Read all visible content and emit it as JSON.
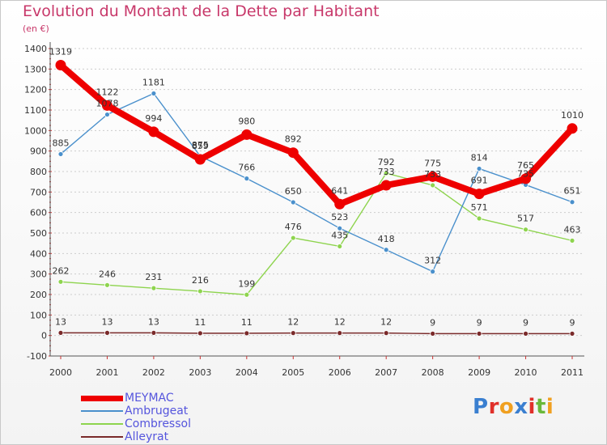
{
  "header": {
    "title": "Evolution du Montant de la Dette par Habitant",
    "subtitle": "(en €)"
  },
  "logo": {
    "text": "Proxiti"
  },
  "colors": {
    "title": "#c8386a",
    "legend_text": "#5555dd",
    "axis": "#555555",
    "grid": "#cccccc"
  },
  "chart_data": {
    "type": "line",
    "title": "Evolution du Montant de la Dette par Habitant",
    "subtitle": "(en €)",
    "xlabel": "",
    "ylabel": "",
    "x": [
      "2000",
      "2001",
      "2002",
      "2003",
      "2004",
      "2005",
      "2006",
      "2007",
      "2008",
      "2009",
      "2010",
      "2011"
    ],
    "ylim": [
      -100,
      1400
    ],
    "yticks": [
      -100,
      0,
      100,
      200,
      300,
      400,
      500,
      600,
      700,
      800,
      900,
      1000,
      1100,
      1200,
      1300,
      1400
    ],
    "grid": "horizontal dashed",
    "legend_position": "bottom-left",
    "series": [
      {
        "name": "MEYMAC",
        "color": "#ee0000",
        "values": [
          1319,
          1122,
          994,
          859,
          980,
          892,
          641,
          733,
          775,
          691,
          765,
          1010
        ],
        "data_labels": [
          "1319",
          "1122",
          "994",
          "859",
          "980",
          "892",
          "641",
          "733",
          "775",
          "691",
          "765",
          "1010"
        ]
      },
      {
        "name": "Ambrugeat",
        "color": "#4a90cc",
        "values": [
          885,
          1078,
          1181,
          875,
          766,
          650,
          523,
          418,
          312,
          814,
          735,
          651
        ],
        "data_labels": [
          "885",
          "1078",
          "1181",
          "875",
          "766",
          "650",
          "523",
          "418",
          "312",
          "814",
          "735",
          "651"
        ]
      },
      {
        "name": "Combressol",
        "color": "#8ed44e",
        "values": [
          262,
          246,
          231,
          216,
          199,
          476,
          435,
          792,
          733,
          571,
          517,
          463
        ],
        "data_labels": [
          "262",
          "246",
          "231",
          "216",
          "199",
          "476",
          "435",
          "792",
          "733",
          "571",
          "517",
          "463"
        ]
      },
      {
        "name": "Alleyrat",
        "color": "#7a2a2a",
        "values": [
          13,
          13,
          13,
          11,
          11,
          12,
          12,
          12,
          9,
          9,
          9,
          9
        ],
        "data_labels": [
          "13",
          "13",
          "13",
          "11",
          "11",
          "12",
          "12",
          "12",
          "9",
          "9",
          "9",
          "9"
        ]
      }
    ]
  }
}
